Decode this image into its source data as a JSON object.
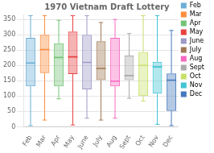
{
  "chart_data": {
    "type": "box",
    "title": "1970 Vietnam Draft Lottery",
    "categories": [
      "Feb",
      "Mar",
      "Apr",
      "May",
      "June",
      "July",
      "Aug",
      "Sept",
      "Oct",
      "Nov",
      "Dec"
    ],
    "values": [
      {
        "min": 4,
        "q1": 132,
        "median": 208,
        "q3": 290,
        "max": 362
      },
      {
        "min": 22,
        "q1": 175,
        "median": 252,
        "q3": 300,
        "max": 362
      },
      {
        "min": 91,
        "q1": 132,
        "median": 226,
        "q3": 272,
        "max": 347
      },
      {
        "min": 6,
        "q1": 172,
        "median": 228,
        "q3": 310,
        "max": 362
      },
      {
        "min": 28,
        "q1": 122,
        "median": 210,
        "q3": 300,
        "max": 362
      },
      {
        "min": 22,
        "q1": 152,
        "median": 190,
        "q3": 279,
        "max": 340
      },
      {
        "min": 28,
        "q1": 132,
        "median": 149,
        "q3": 290,
        "max": 350
      },
      {
        "min": 93,
        "q1": 152,
        "median": 167,
        "q3": 232,
        "max": 304
      },
      {
        "min": 84,
        "q1": 100,
        "median": 200,
        "q3": 244,
        "max": 362
      },
      {
        "min": 8,
        "q1": 108,
        "median": 195,
        "q3": 212,
        "max": 362
      },
      {
        "min": 4,
        "q1": 52,
        "median": 152,
        "q3": 174,
        "max": 314
      }
    ],
    "colors": [
      "#6baed6",
      "#fd8d3c",
      "#74c476",
      "#e84040",
      "#9e9ac8",
      "#a07855",
      "#f768c0",
      "#aaaaaa",
      "#c7e06a",
      "#41c4d4",
      "#4477bb"
    ],
    "ylim": [
      0,
      366
    ],
    "yticks": [
      0,
      50,
      100,
      150,
      200,
      250,
      300,
      350
    ],
    "grid": true,
    "legend": "right"
  }
}
